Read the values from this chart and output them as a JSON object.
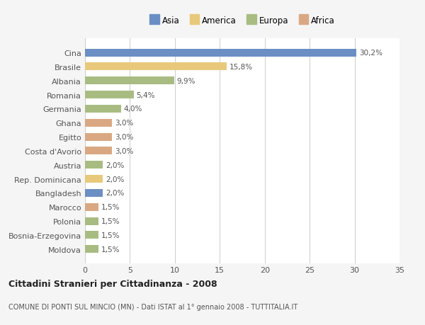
{
  "countries": [
    "Cina",
    "Brasile",
    "Albania",
    "Romania",
    "Germania",
    "Ghana",
    "Egitto",
    "Costa d'Avorio",
    "Austria",
    "Rep. Dominicana",
    "Bangladesh",
    "Marocco",
    "Polonia",
    "Bosnia-Erzegovina",
    "Moldova"
  ],
  "values": [
    30.2,
    15.8,
    9.9,
    5.4,
    4.0,
    3.0,
    3.0,
    3.0,
    2.0,
    2.0,
    2.0,
    1.5,
    1.5,
    1.5,
    1.5
  ],
  "labels": [
    "30,2%",
    "15,8%",
    "9,9%",
    "5,4%",
    "4,0%",
    "3,0%",
    "3,0%",
    "3,0%",
    "2,0%",
    "2,0%",
    "2,0%",
    "1,5%",
    "1,5%",
    "1,5%",
    "1,5%"
  ],
  "colors": [
    "#6b8fc4",
    "#e8c87a",
    "#a8bc82",
    "#a8bc82",
    "#a8bc82",
    "#d9a882",
    "#d9a882",
    "#d9a882",
    "#a8bc82",
    "#e8c87a",
    "#6b8fc4",
    "#d9a882",
    "#a8bc82",
    "#a8bc82",
    "#a8bc82"
  ],
  "legend_labels": [
    "Asia",
    "America",
    "Europa",
    "Africa"
  ],
  "legend_colors": [
    "#6b8fc4",
    "#e8c87a",
    "#a8bc82",
    "#d9a882"
  ],
  "title": "Cittadini Stranieri per Cittadinanza - 2008",
  "subtitle": "COMUNE DI PONTI SUL MINCIO (MN) - Dati ISTAT al 1° gennaio 2008 - TUTTITALIA.IT",
  "xlim": [
    0,
    35
  ],
  "xticks": [
    0,
    5,
    10,
    15,
    20,
    25,
    30,
    35
  ],
  "bg_color": "#f5f5f5",
  "plot_bg_color": "#ffffff"
}
